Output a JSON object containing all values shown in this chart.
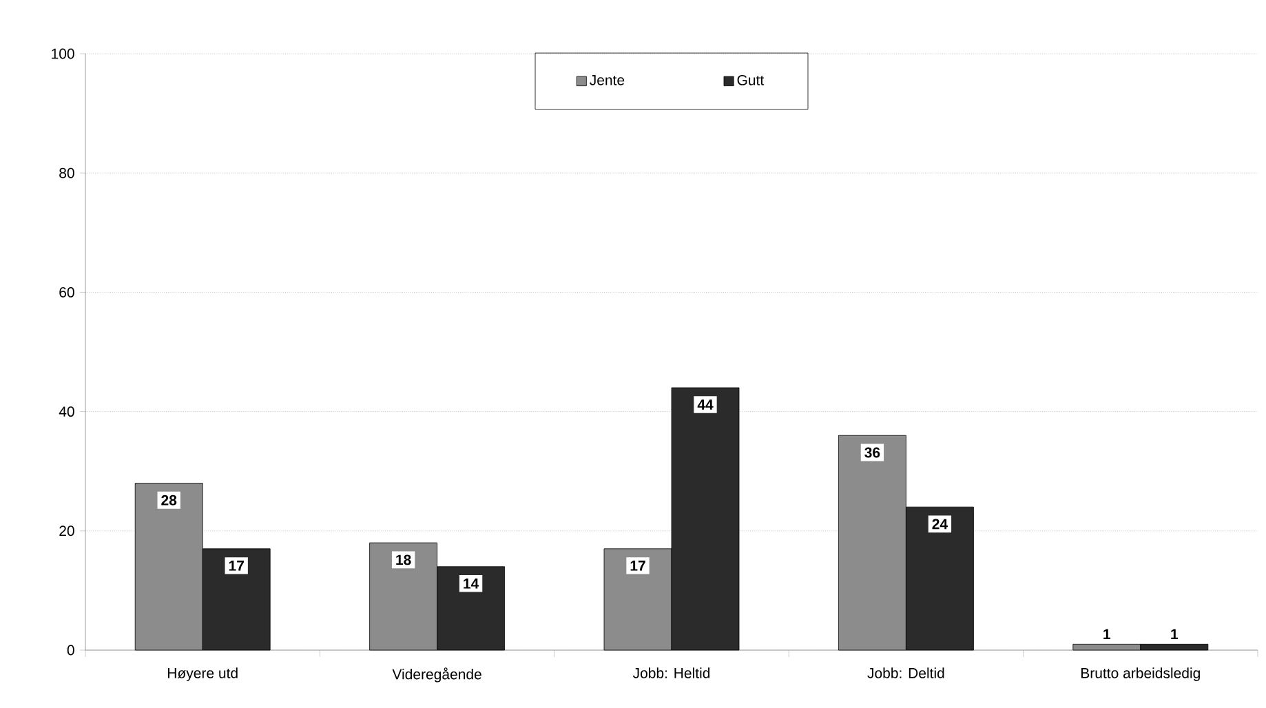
{
  "chart_data": {
    "type": "bar",
    "categories": [
      "Høyere utd",
      "Videregående",
      "Jobb: Heltid",
      "Jobb: Deltid",
      "Brutto arbeidsledig"
    ],
    "series": [
      {
        "name": "Jente",
        "color": "#8c8c8c",
        "values": [
          28,
          18,
          17,
          36,
          1
        ]
      },
      {
        "name": "Gutt",
        "color": "#2b2b2b",
        "values": [
          17,
          14,
          44,
          24,
          1
        ]
      }
    ],
    "ylim": [
      0,
      100
    ],
    "yticks": [
      0,
      20,
      40,
      60,
      80,
      100
    ],
    "grid": "y",
    "legend": "top",
    "data_labels": true
  }
}
